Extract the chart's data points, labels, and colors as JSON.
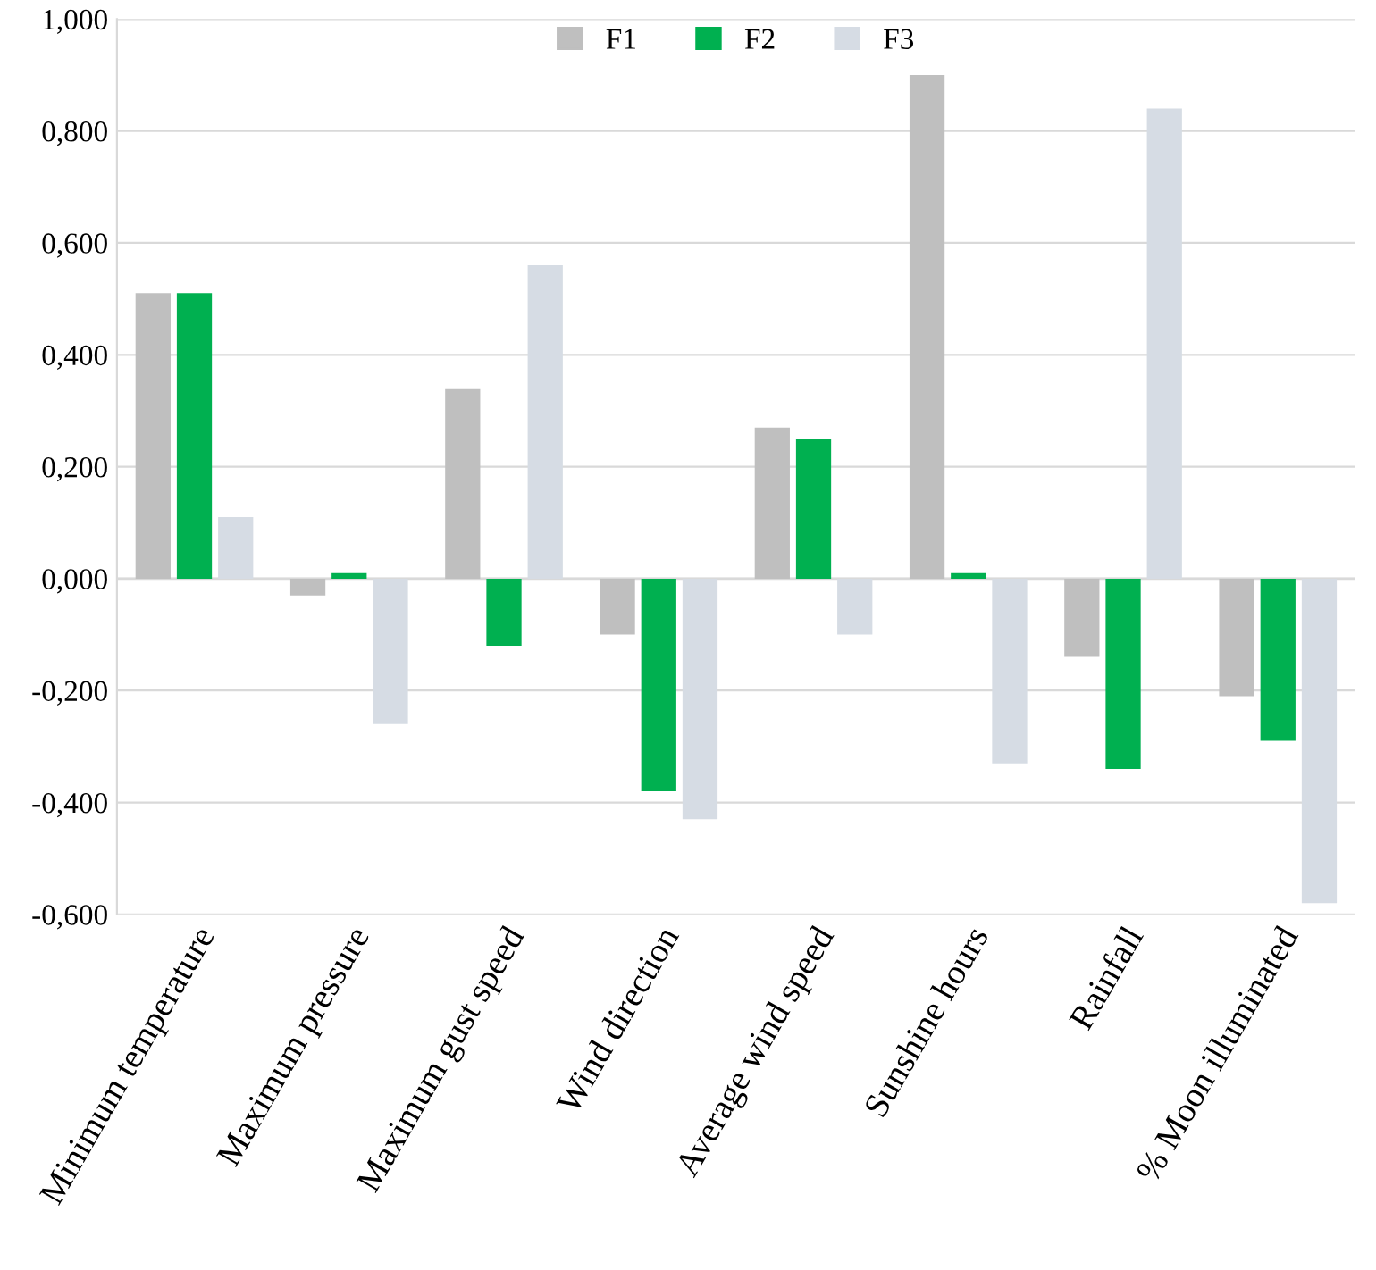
{
  "chart_data": {
    "type": "bar",
    "categories": [
      "Minimum temperature",
      "Maximum pressure",
      "Maximum gust speed",
      "Wind direction",
      "Average wind speed",
      "Sunshine hours",
      "Rainfall",
      "% Moon illuminated"
    ],
    "series": [
      {
        "name": "F1",
        "color": "#bfbfbf",
        "values": [
          0.51,
          -0.03,
          0.34,
          -0.1,
          0.27,
          0.9,
          -0.14,
          -0.21
        ]
      },
      {
        "name": "F2",
        "color": "#00b050",
        "values": [
          0.51,
          0.01,
          -0.12,
          -0.38,
          0.25,
          0.01,
          -0.34,
          -0.29
        ]
      },
      {
        "name": "F3",
        "color": "#d6dce4",
        "values": [
          0.11,
          -0.26,
          0.56,
          -0.43,
          -0.1,
          -0.33,
          0.84,
          -0.58
        ]
      }
    ],
    "ylim": [
      -0.6,
      1.0
    ],
    "yticks": [
      {
        "value": -0.6,
        "label": "-0,600"
      },
      {
        "value": -0.4,
        "label": "-0,400"
      },
      {
        "value": -0.2,
        "label": "-0,200"
      },
      {
        "value": 0,
        "label": "0,000"
      },
      {
        "value": 0.2,
        "label": "0,200"
      },
      {
        "value": 0.4,
        "label": "0,400"
      },
      {
        "value": 0.6,
        "label": "0,600"
      },
      {
        "value": 0.8,
        "label": "0,800"
      },
      {
        "value": 1.0,
        "label": "1,000"
      }
    ],
    "grid": "y",
    "legend": "top"
  }
}
